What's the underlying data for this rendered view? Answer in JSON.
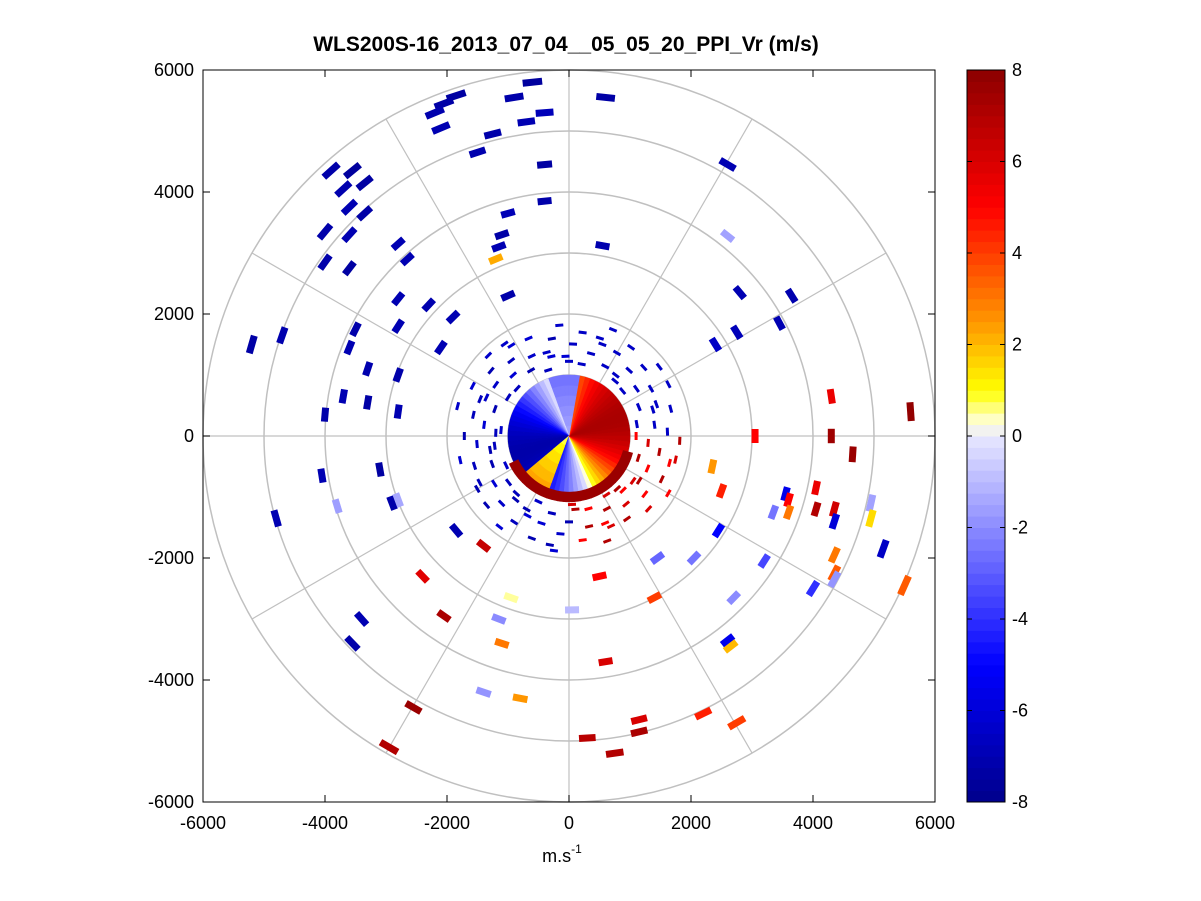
{
  "chart_data": {
    "type": "heatmap",
    "subtype": "polar PPI scan",
    "title": "WLS200S-16_2013_07_04__05_05_20_PPI_Vr (m/s)",
    "xlabel": "m.s",
    "xlabel_sup": "-1",
    "ylabel": "",
    "xlim": [
      -6000,
      6000
    ],
    "ylim": [
      -6000,
      6000
    ],
    "x_ticks": [
      "-6000",
      "-4000",
      "-2000",
      "0",
      "2000",
      "4000",
      "6000"
    ],
    "y_ticks": [
      "6000",
      "4000",
      "2000",
      "0",
      "-2000",
      "-4000",
      "-6000"
    ],
    "x_tick_values": [
      -6000,
      -4000,
      -2000,
      0,
      2000,
      4000,
      6000
    ],
    "y_tick_values": [
      6000,
      4000,
      2000,
      0,
      -2000,
      -4000,
      -6000
    ],
    "polar_grid": {
      "ring_radii": [
        1000,
        2000,
        3000,
        4000,
        5000,
        6000
      ],
      "spoke_angles_deg": [
        0,
        30,
        60,
        90,
        120,
        150,
        180,
        210,
        240,
        270,
        300,
        330
      ],
      "color": "#c0c0c0"
    },
    "colorbar": {
      "min": -8,
      "max": 8,
      "ticks": [
        "8",
        "6",
        "4",
        "2",
        "0",
        "-2",
        "-4",
        "-6",
        "-8"
      ],
      "tick_values": [
        8,
        6,
        4,
        2,
        0,
        -2,
        -4,
        -6,
        -8
      ],
      "colors": [
        "#00008b",
        "#0000ff",
        "#ffffff",
        "#ffff00",
        "#ff8c00",
        "#ff0000",
        "#8b0000"
      ]
    },
    "inner_disc": {
      "radius": 1000,
      "note": "dense near-field velocity field: negative west half, positive east half"
    },
    "points": [
      {
        "x": -600,
        "y": 5800,
        "v": -7.5
      },
      {
        "x": -900,
        "y": 5550,
        "v": -7.2
      },
      {
        "x": -1850,
        "y": 5580,
        "v": -7.4
      },
      {
        "x": -2050,
        "y": 5450,
        "v": -7.3
      },
      {
        "x": -2200,
        "y": 5300,
        "v": -7.1
      },
      {
        "x": -2100,
        "y": 5050,
        "v": -7.0
      },
      {
        "x": -1250,
        "y": 4950,
        "v": -7.2
      },
      {
        "x": -400,
        "y": 5300,
        "v": -6.8
      },
      {
        "x": -700,
        "y": 5150,
        "v": -7.0
      },
      {
        "x": 600,
        "y": 5550,
        "v": -7.3
      },
      {
        "x": -1500,
        "y": 4650,
        "v": -7.1
      },
      {
        "x": -400,
        "y": 4450,
        "v": -7.4
      },
      {
        "x": 2600,
        "y": 4450,
        "v": -7.0
      },
      {
        "x": -3900,
        "y": 4350,
        "v": -7.2
      },
      {
        "x": -3550,
        "y": 4350,
        "v": -7.5
      },
      {
        "x": -3350,
        "y": 4150,
        "v": -7.4
      },
      {
        "x": -3700,
        "y": 4050,
        "v": -7.1
      },
      {
        "x": -3600,
        "y": 3750,
        "v": -7.0
      },
      {
        "x": -3350,
        "y": 3650,
        "v": -7.3
      },
      {
        "x": -4000,
        "y": 3350,
        "v": -7.2
      },
      {
        "x": -3600,
        "y": 3300,
        "v": -7.0
      },
      {
        "x": -400,
        "y": 3850,
        "v": -7.2
      },
      {
        "x": -1000,
        "y": 3650,
        "v": -6.9
      },
      {
        "x": -1100,
        "y": 3300,
        "v": -7.3
      },
      {
        "x": -1150,
        "y": 3100,
        "v": -7.0
      },
      {
        "x": 2600,
        "y": 3280,
        "v": -1.5
      },
      {
        "x": 550,
        "y": 3120,
        "v": -7.1
      },
      {
        "x": -2800,
        "y": 3150,
        "v": -7.0
      },
      {
        "x": -4000,
        "y": 2850,
        "v": -7.2
      },
      {
        "x": -3600,
        "y": 2750,
        "v": -7.4
      },
      {
        "x": -2650,
        "y": 2900,
        "v": -7.0
      },
      {
        "x": -1200,
        "y": 2900,
        "v": 2.2
      },
      {
        "x": -5200,
        "y": 1500,
        "v": -7.3
      },
      {
        "x": -4700,
        "y": 1650,
        "v": -7.1
      },
      {
        "x": -2800,
        "y": 2250,
        "v": -7.0
      },
      {
        "x": -2300,
        "y": 2150,
        "v": -7.1
      },
      {
        "x": -1900,
        "y": 1950,
        "v": -7.0
      },
      {
        "x": -1000,
        "y": 2300,
        "v": -7.2
      },
      {
        "x": 2800,
        "y": 2350,
        "v": -7.0
      },
      {
        "x": 3650,
        "y": 2300,
        "v": -7.1
      },
      {
        "x": 3450,
        "y": 1850,
        "v": -7.0
      },
      {
        "x": 2750,
        "y": 1700,
        "v": -6.8
      },
      {
        "x": 2400,
        "y": 1500,
        "v": -6.5
      },
      {
        "x": -3500,
        "y": 1750,
        "v": -7.2
      },
      {
        "x": -2800,
        "y": 1800,
        "v": -7.0
      },
      {
        "x": -2100,
        "y": 1450,
        "v": -7.0
      },
      {
        "x": -3600,
        "y": 1450,
        "v": -7.0
      },
      {
        "x": -3300,
        "y": 1100,
        "v": -7.1
      },
      {
        "x": -2800,
        "y": 1000,
        "v": -7.2
      },
      {
        "x": -3700,
        "y": 650,
        "v": -7.0
      },
      {
        "x": -3300,
        "y": 550,
        "v": -7.3
      },
      {
        "x": -2800,
        "y": 400,
        "v": -7.0
      },
      {
        "x": -4000,
        "y": 350,
        "v": -7.2
      },
      {
        "x": -4050,
        "y": -650,
        "v": -7.0
      },
      {
        "x": -3100,
        "y": -550,
        "v": -7.4
      },
      {
        "x": -2900,
        "y": -1100,
        "v": -7.2
      },
      {
        "x": -4800,
        "y": -1350,
        "v": -7.0
      },
      {
        "x": -2800,
        "y": -1050,
        "v": -1.4
      },
      {
        "x": -3800,
        "y": -1150,
        "v": -1.6
      },
      {
        "x": -3400,
        "y": -3000,
        "v": -7.0
      },
      {
        "x": -3550,
        "y": -3400,
        "v": -7.2
      },
      {
        "x": 4300,
        "y": 650,
        "v": 5.5
      },
      {
        "x": 4300,
        "y": 0,
        "v": 7.5
      },
      {
        "x": 3050,
        "y": 0,
        "v": 5.0
      },
      {
        "x": 5600,
        "y": 400,
        "v": 7.8
      },
      {
        "x": 4650,
        "y": -300,
        "v": 7.6
      },
      {
        "x": 4050,
        "y": -850,
        "v": 5.5
      },
      {
        "x": 3550,
        "y": -950,
        "v": -5.5
      },
      {
        "x": 2350,
        "y": -500,
        "v": 2.5
      },
      {
        "x": 2500,
        "y": -900,
        "v": 4.5
      },
      {
        "x": 3350,
        "y": -1250,
        "v": -2.5
      },
      {
        "x": 3600,
        "y": -1050,
        "v": 5.0
      },
      {
        "x": 3600,
        "y": -1250,
        "v": 3.0
      },
      {
        "x": 4050,
        "y": -1200,
        "v": 7.0
      },
      {
        "x": 4350,
        "y": -1200,
        "v": 6.2
      },
      {
        "x": 4350,
        "y": -1400,
        "v": -6.0
      },
      {
        "x": 4950,
        "y": -1100,
        "v": -1.5
      },
      {
        "x": 4950,
        "y": -1350,
        "v": 1.5
      },
      {
        "x": 5150,
        "y": -1850,
        "v": -6.5
      },
      {
        "x": 4350,
        "y": -1950,
        "v": 3.0
      },
      {
        "x": 4350,
        "y": -2250,
        "v": 3.5
      },
      {
        "x": 4350,
        "y": -2350,
        "v": -1.8
      },
      {
        "x": 4000,
        "y": -2500,
        "v": -4.0
      },
      {
        "x": 5500,
        "y": -2450,
        "v": 3.5
      },
      {
        "x": 2450,
        "y": -1550,
        "v": -5.0
      },
      {
        "x": 3200,
        "y": -2050,
        "v": -3.5
      },
      {
        "x": 2700,
        "y": -2650,
        "v": -2.0
      },
      {
        "x": 2600,
        "y": -3350,
        "v": -5.5
      },
      {
        "x": 2650,
        "y": -3450,
        "v": 2.0
      },
      {
        "x": 2050,
        "y": -2000,
        "v": -2.5
      },
      {
        "x": 1400,
        "y": -2650,
        "v": 4.0
      },
      {
        "x": 1450,
        "y": -2000,
        "v": -2.8
      },
      {
        "x": 500,
        "y": -2300,
        "v": 5.0
      },
      {
        "x": 600,
        "y": -3700,
        "v": 6.0
      },
      {
        "x": 50,
        "y": -2850,
        "v": -1.0
      },
      {
        "x": -950,
        "y": -2650,
        "v": 0.5
      },
      {
        "x": -1150,
        "y": -3000,
        "v": -2.0
      },
      {
        "x": -1100,
        "y": -3400,
        "v": 3.0
      },
      {
        "x": -2050,
        "y": -2950,
        "v": 7.2
      },
      {
        "x": -2400,
        "y": -2300,
        "v": 5.8
      },
      {
        "x": -1400,
        "y": -1800,
        "v": 6.5
      },
      {
        "x": -1850,
        "y": -1550,
        "v": -7.0
      },
      {
        "x": -1400,
        "y": -4200,
        "v": -1.8
      },
      {
        "x": -800,
        "y": -4300,
        "v": 2.5
      },
      {
        "x": -2550,
        "y": -4450,
        "v": 7.6
      },
      {
        "x": -2950,
        "y": -5100,
        "v": 7.0
      },
      {
        "x": 300,
        "y": -4950,
        "v": 6.8
      },
      {
        "x": 1150,
        "y": -4850,
        "v": 7.2
      },
      {
        "x": 1150,
        "y": -4650,
        "v": 6.0
      },
      {
        "x": 750,
        "y": -5200,
        "v": 7.0
      },
      {
        "x": 2200,
        "y": -4550,
        "v": 4.5
      },
      {
        "x": 2750,
        "y": -4700,
        "v": 4.0
      }
    ]
  }
}
